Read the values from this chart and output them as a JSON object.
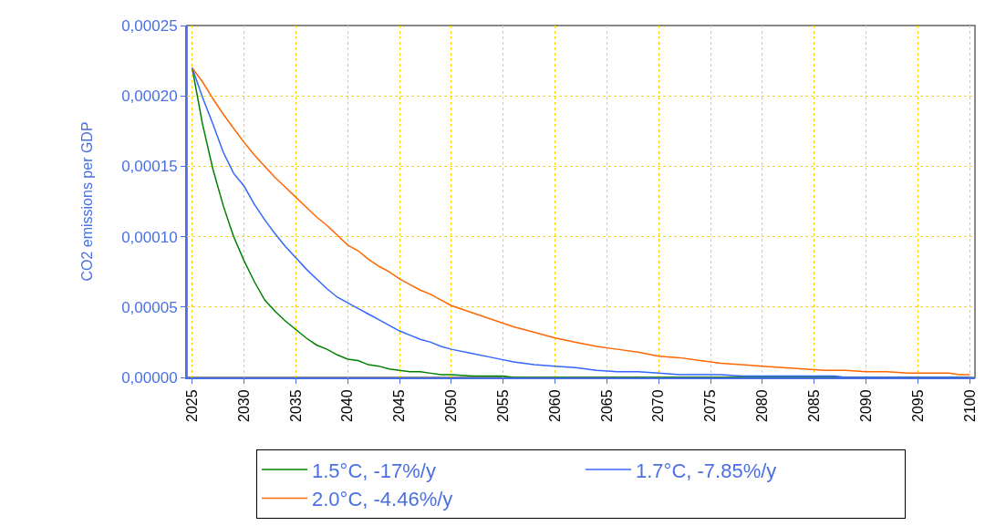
{
  "chart_data": {
    "type": "line",
    "ylabel": "CO2 emissions per GDP",
    "xlim": [
      2024.5,
      2100.5
    ],
    "xticks": [
      2025,
      2030,
      2035,
      2040,
      2045,
      2050,
      2055,
      2060,
      2065,
      2070,
      2075,
      2080,
      2085,
      2090,
      2095,
      2100
    ],
    "ylim": [
      0,
      0.00025
    ],
    "yticks": [
      {
        "value": 0,
        "label": "0,00000"
      },
      {
        "value": 5e-05,
        "label": "0,00005"
      },
      {
        "value": 0.0001,
        "label": "0,00010"
      },
      {
        "value": 0.00015,
        "label": "0,00015"
      },
      {
        "value": 0.0002,
        "label": "0,00020"
      },
      {
        "value": 0.00025,
        "label": "0,00025"
      }
    ],
    "grid": true,
    "legend": "bottom",
    "marker": "none",
    "line_style": "solid",
    "series": [
      {
        "name": "1.5°C, -17%/y",
        "color": "#008000",
        "x": [
          2025,
          2026,
          2027,
          2028,
          2029,
          2030,
          2031,
          2032,
          2033,
          2034,
          2035,
          2036,
          2037,
          2038,
          2039,
          2040,
          2041,
          2042,
          2043,
          2044,
          2045,
          2046,
          2047,
          2048,
          2049,
          2050,
          2052,
          2055,
          2056,
          2100
        ],
        "values": [
          0.00022,
          0.00018,
          0.000148,
          0.000122,
          0.0001,
          8.3e-05,
          6.8e-05,
          5.5e-05,
          4.7e-05,
          4e-05,
          3.4e-05,
          2.8e-05,
          2.3e-05,
          2e-05,
          1.6e-05,
          1.3e-05,
          1.2e-05,
          9e-06,
          8e-06,
          6e-06,
          5e-06,
          4e-06,
          4e-06,
          3e-06,
          2e-06,
          2e-06,
          1e-06,
          1e-06,
          0,
          0
        ]
      },
      {
        "name": "1.7°C, -7.85%/y",
        "color": "#3366ff",
        "x": [
          2025,
          2026,
          2027,
          2028,
          2029,
          2030,
          2031,
          2032,
          2033,
          2034,
          2035,
          2036,
          2037,
          2038,
          2039,
          2040,
          2041,
          2042,
          2043,
          2044,
          2045,
          2046,
          2047,
          2048,
          2049,
          2050,
          2052,
          2054,
          2056,
          2058,
          2060,
          2062,
          2064,
          2066,
          2068,
          2070,
          2072,
          2076,
          2078,
          2087,
          2088,
          2100
        ],
        "values": [
          0.00022,
          0.000199,
          0.00018,
          0.00016,
          0.000145,
          0.000136,
          0.000123,
          0.000112,
          0.000102,
          9.3e-05,
          8.5e-05,
          7.7e-05,
          7e-05,
          6.3e-05,
          5.7e-05,
          5.3e-05,
          4.9e-05,
          4.5e-05,
          4.1e-05,
          3.7e-05,
          3.3e-05,
          3e-05,
          2.7e-05,
          2.5e-05,
          2.2e-05,
          2e-05,
          1.7e-05,
          1.4e-05,
          1.1e-05,
          9e-06,
          8e-06,
          7e-06,
          5e-06,
          4e-06,
          4e-06,
          3e-06,
          2e-06,
          2e-06,
          1e-06,
          1e-06,
          0,
          0
        ]
      },
      {
        "name": "2.0°C, -4.46%/y",
        "color": "#ff6600",
        "x": [
          2025,
          2026,
          2027,
          2028,
          2029,
          2030,
          2031,
          2032,
          2033,
          2034,
          2035,
          2036,
          2037,
          2038,
          2039,
          2040,
          2041,
          2042,
          2043,
          2044,
          2045,
          2046,
          2047,
          2048,
          2049,
          2050,
          2052,
          2054,
          2056,
          2058,
          2060,
          2062,
          2064,
          2066,
          2068,
          2070,
          2072,
          2074,
          2076,
          2078,
          2080,
          2082,
          2084,
          2086,
          2088,
          2090,
          2092,
          2094,
          2096,
          2098,
          2099,
          2100
        ],
        "values": [
          0.00022,
          0.00021,
          0.000198,
          0.000187,
          0.000177,
          0.000167,
          0.000158,
          0.00015,
          0.000142,
          0.000135,
          0.000128,
          0.000121,
          0.000114,
          0.000108,
          0.000101,
          9.4e-05,
          9e-05,
          8.4e-05,
          7.9e-05,
          7.5e-05,
          7e-05,
          6.6e-05,
          6.2e-05,
          5.9e-05,
          5.5e-05,
          5.1e-05,
          4.6e-05,
          4.1e-05,
          3.6e-05,
          3.2e-05,
          2.8e-05,
          2.5e-05,
          2.2e-05,
          2e-05,
          1.8e-05,
          1.5e-05,
          1.4e-05,
          1.2e-05,
          1e-05,
          9e-06,
          8e-06,
          7e-06,
          6e-06,
          5e-06,
          5e-06,
          4e-06,
          4e-06,
          3e-06,
          3e-06,
          3e-06,
          2e-06,
          2e-06
        ]
      }
    ]
  }
}
